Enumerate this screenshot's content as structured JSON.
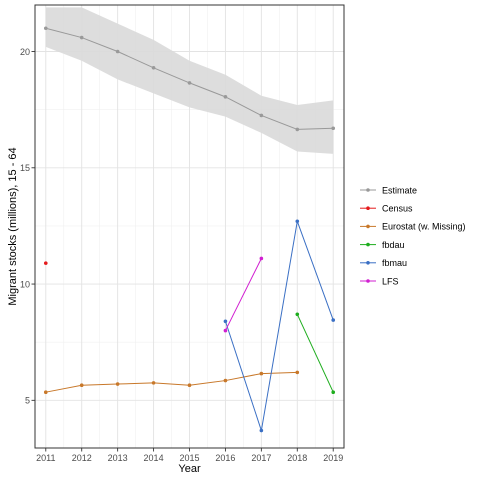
{
  "chart_data": {
    "type": "line",
    "xlabel": "Year",
    "ylabel": "Migrant stocks (millions), 15 - 64",
    "xlim": [
      2010.7,
      2019.3
    ],
    "ylim": [
      2.95,
      22.0
    ],
    "x_ticks": [
      2011,
      2012,
      2013,
      2014,
      2015,
      2016,
      2017,
      2018,
      2019
    ],
    "y_ticks": [
      5,
      10,
      15,
      20
    ],
    "grid": true,
    "legend_position": "right",
    "ribbon": {
      "series": "Estimate",
      "x": [
        2011,
        2012,
        2013,
        2014,
        2015,
        2016,
        2017,
        2018,
        2019
      ],
      "lower": [
        20.2,
        19.6,
        18.8,
        18.2,
        17.6,
        17.2,
        16.5,
        15.7,
        15.6
      ],
      "upper": [
        21.9,
        21.9,
        21.2,
        20.5,
        19.6,
        19.0,
        18.1,
        17.7,
        17.9
      ],
      "color": "#d9d9d9"
    },
    "series": [
      {
        "name": "Estimate",
        "color": "#999999",
        "x": [
          2011,
          2012,
          2013,
          2014,
          2015,
          2016,
          2017,
          2018,
          2019
        ],
        "y": [
          21.0,
          20.6,
          20.0,
          19.3,
          18.65,
          18.05,
          17.25,
          16.65,
          16.7
        ]
      },
      {
        "name": "Census",
        "color": "#e41a1c",
        "x": [
          2011
        ],
        "y": [
          10.9
        ]
      },
      {
        "name": "Eurostat (w. Missing)",
        "color": "#c8782a",
        "x": [
          2011,
          2012,
          2013,
          2014,
          2015,
          2016,
          2017,
          2018
        ],
        "y": [
          5.35,
          5.65,
          5.7,
          5.75,
          5.65,
          5.85,
          6.15,
          6.2
        ]
      },
      {
        "name": "fbdau",
        "color": "#1ead1e",
        "x": [
          2018,
          2019
        ],
        "y": [
          8.7,
          5.35
        ]
      },
      {
        "name": "fbmau",
        "color": "#3a6fc4",
        "x": [
          2016,
          2017,
          2018,
          2019
        ],
        "y": [
          8.4,
          3.7,
          12.7,
          8.45
        ]
      },
      {
        "name": "LFS",
        "color": "#d11fd1",
        "x": [
          2016,
          2017
        ],
        "y": [
          8.0,
          11.1
        ]
      }
    ]
  }
}
